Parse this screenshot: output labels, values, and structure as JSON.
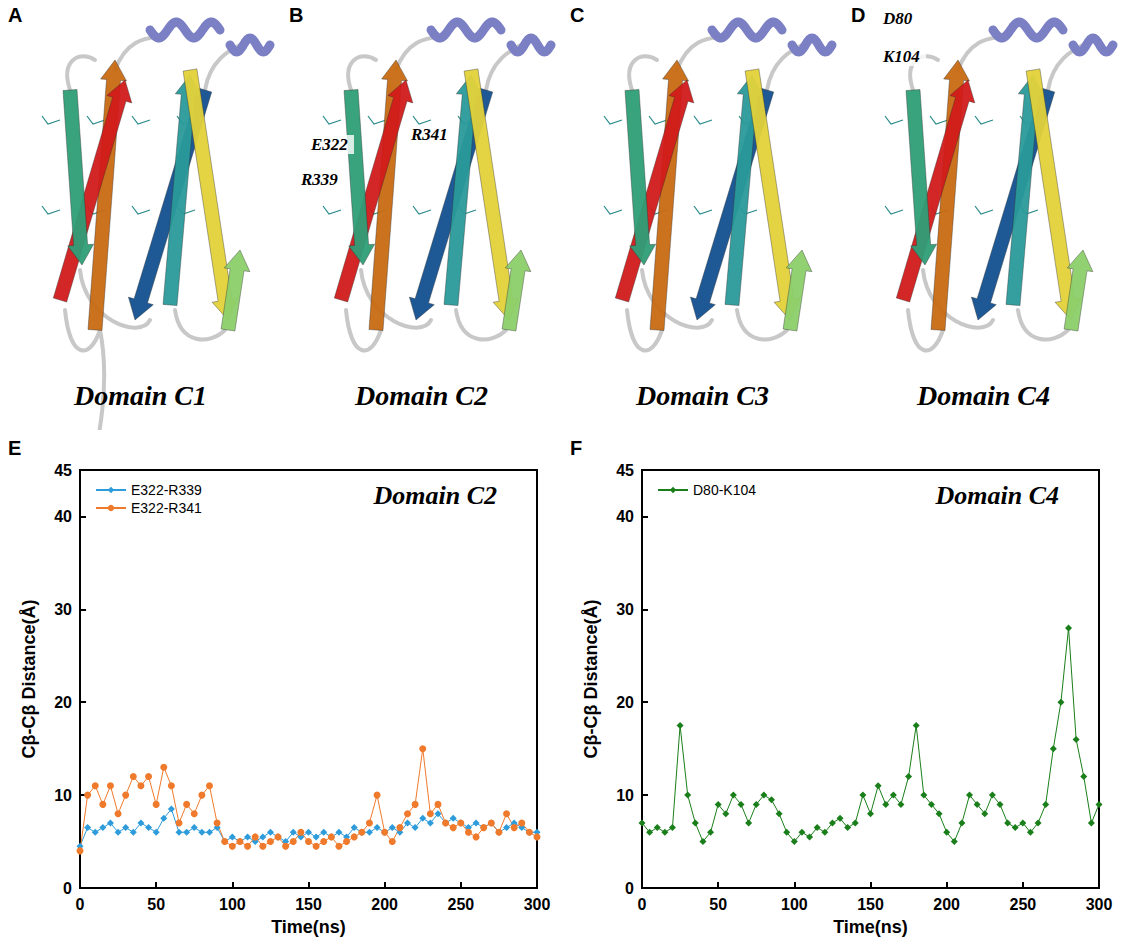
{
  "structures": [
    {
      "panel": "A",
      "title": "Domain C1"
    },
    {
      "panel": "B",
      "title": "Domain C2",
      "residues": [
        "E322",
        "R341",
        "R339"
      ]
    },
    {
      "panel": "C",
      "title": "Domain C3"
    },
    {
      "panel": "D",
      "title": "Domain C4",
      "residues": [
        "D80",
        "K104"
      ]
    }
  ],
  "chart_data": [
    {
      "type": "line",
      "panel": "E",
      "title": "Domain C2",
      "x_label": "Time(ns)",
      "y_label": "Cβ-Cβ Distance(Å)",
      "xlim": [
        0,
        300
      ],
      "xticks": [
        0,
        50,
        100,
        150,
        200,
        250,
        300
      ],
      "ylim": [
        0,
        45
      ],
      "yticks": [
        0,
        10,
        20,
        30,
        40
      ],
      "legend": "upper left",
      "grid": false,
      "x": [
        0,
        5,
        10,
        15,
        20,
        25,
        30,
        35,
        40,
        45,
        50,
        55,
        60,
        65,
        70,
        75,
        80,
        85,
        90,
        95,
        100,
        105,
        110,
        115,
        120,
        125,
        130,
        135,
        140,
        145,
        150,
        155,
        160,
        165,
        170,
        175,
        180,
        185,
        190,
        195,
        200,
        205,
        210,
        215,
        220,
        225,
        230,
        235,
        240,
        245,
        250,
        255,
        260,
        265,
        270,
        275,
        280,
        285,
        290,
        295,
        300
      ],
      "series": [
        {
          "name": "E322-R339",
          "color": "#2e9bda",
          "marker": "diamond",
          "line_style": "solid",
          "values": [
            4.5,
            6.5,
            6,
            6.5,
            7,
            6,
            6.5,
            6,
            7,
            6.5,
            6,
            7.5,
            8.5,
            6,
            6,
            6.5,
            6,
            6,
            6.5,
            5,
            5.5,
            5,
            5.5,
            5,
            5.5,
            6,
            5.5,
            5,
            6,
            5.5,
            6,
            5.5,
            6,
            5.5,
            6,
            5.5,
            6.5,
            6,
            6,
            6.5,
            6,
            6.5,
            6,
            7,
            6.5,
            7.5,
            7,
            8,
            7,
            7.5,
            7,
            6.5,
            7,
            6.5,
            7,
            6,
            6.5,
            7,
            6.5,
            6,
            6
          ]
        },
        {
          "name": "E322-R341",
          "color": "#f07a2c",
          "marker": "circle",
          "line_style": "solid",
          "values": [
            4,
            10,
            11,
            9,
            11,
            8,
            10,
            12,
            11,
            12,
            9,
            13,
            11,
            7,
            9,
            8,
            10,
            11,
            7,
            5,
            4.5,
            5,
            4.5,
            5.5,
            4.5,
            5,
            5.5,
            4.5,
            5,
            6,
            5,
            4.5,
            5,
            5.5,
            4.5,
            5,
            5.5,
            6,
            7,
            10,
            6,
            5,
            6.5,
            8,
            9,
            15,
            8,
            9,
            7,
            6.5,
            7,
            6,
            5.5,
            6.5,
            7,
            6,
            8,
            6.5,
            7,
            6,
            5.5
          ]
        }
      ]
    },
    {
      "type": "line",
      "panel": "F",
      "title": "Domain C4",
      "x_label": "Time(ns)",
      "y_label": "Cβ-Cβ Distance(Å)",
      "xlim": [
        0,
        300
      ],
      "xticks": [
        0,
        50,
        100,
        150,
        200,
        250,
        300
      ],
      "ylim": [
        0,
        45
      ],
      "yticks": [
        0,
        10,
        20,
        30,
        40
      ],
      "legend": "upper left",
      "grid": false,
      "x": [
        0,
        5,
        10,
        15,
        20,
        25,
        30,
        35,
        40,
        45,
        50,
        55,
        60,
        65,
        70,
        75,
        80,
        85,
        90,
        95,
        100,
        105,
        110,
        115,
        120,
        125,
        130,
        135,
        140,
        145,
        150,
        155,
        160,
        165,
        170,
        175,
        180,
        185,
        190,
        195,
        200,
        205,
        210,
        215,
        220,
        225,
        230,
        235,
        240,
        245,
        250,
        255,
        260,
        265,
        270,
        275,
        280,
        285,
        290,
        295,
        300
      ],
      "series": [
        {
          "name": "D80-K104",
          "color": "#1a7f1a",
          "marker": "diamond",
          "line_style": "solid",
          "values": [
            7,
            6,
            6.5,
            6,
            6.5,
            17.5,
            10,
            7,
            5,
            6,
            9,
            8,
            10,
            9,
            7,
            9,
            10,
            9.5,
            8,
            6,
            5,
            6,
            5.5,
            6.5,
            6,
            7,
            7.5,
            6.5,
            7,
            10,
            8,
            11,
            9,
            10,
            9,
            12,
            17.5,
            10,
            9,
            8,
            6,
            5,
            7,
            10,
            9,
            8,
            10,
            9,
            7,
            6.5,
            7,
            6,
            7,
            9,
            15,
            20,
            28,
            16,
            12,
            7,
            9
          ]
        }
      ]
    }
  ]
}
